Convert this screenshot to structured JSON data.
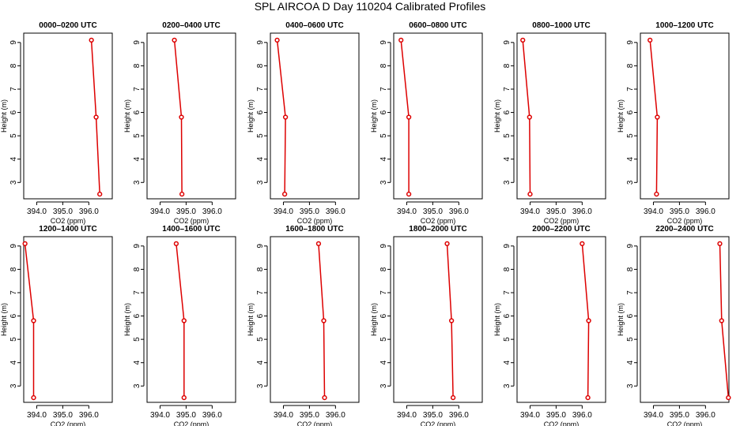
{
  "title": "SPL AIRCOA D  Day 110204  Calibrated Profiles",
  "xlabel": "CO2 (ppm)",
  "ylabel": "Height (m)",
  "colors": {
    "series": "#dd0000",
    "axis": "#000000",
    "background": "#ffffff"
  },
  "chart_data": [
    {
      "type": "line",
      "title": "0000–0200 UTC",
      "x": [
        396.42,
        396.28,
        396.1
      ],
      "y": [
        2.5,
        5.8,
        9.1
      ],
      "xlim": [
        393.5,
        396.9
      ],
      "ylim": [
        2.3,
        9.4
      ],
      "xticks": [
        394.0,
        395.0,
        396.0
      ],
      "xtick_labels": [
        "394.0",
        "395.0",
        "396.0"
      ],
      "yticks": [
        3,
        4,
        5,
        6,
        7,
        8,
        9
      ]
    },
    {
      "type": "line",
      "title": "0200–0400 UTC",
      "x": [
        394.84,
        394.82,
        394.55
      ],
      "y": [
        2.5,
        5.8,
        9.1
      ],
      "xlim": [
        393.5,
        396.9
      ],
      "ylim": [
        2.3,
        9.4
      ],
      "xticks": [
        394.0,
        395.0,
        396.0
      ],
      "xtick_labels": [
        "394.0",
        "395.0",
        "396.0"
      ],
      "yticks": [
        3,
        4,
        5,
        6,
        7,
        8,
        9
      ]
    },
    {
      "type": "line",
      "title": "0400–0600 UTC",
      "x": [
        394.05,
        394.08,
        393.76
      ],
      "y": [
        2.5,
        5.8,
        9.1
      ],
      "xlim": [
        393.5,
        396.9
      ],
      "ylim": [
        2.3,
        9.4
      ],
      "xticks": [
        394.0,
        395.0,
        396.0
      ],
      "xtick_labels": [
        "394.0",
        "395.0",
        "396.0"
      ],
      "yticks": [
        3,
        4,
        5,
        6,
        7,
        8,
        9
      ]
    },
    {
      "type": "line",
      "title": "0600–0800 UTC",
      "x": [
        394.08,
        394.08,
        393.78
      ],
      "y": [
        2.5,
        5.8,
        9.1
      ],
      "xlim": [
        393.5,
        396.9
      ],
      "ylim": [
        2.3,
        9.4
      ],
      "xticks": [
        394.0,
        395.0,
        396.0
      ],
      "xtick_labels": [
        "394.0",
        "395.0",
        "396.0"
      ],
      "yticks": [
        3,
        4,
        5,
        6,
        7,
        8,
        9
      ]
    },
    {
      "type": "line",
      "title": "0800–1000 UTC",
      "x": [
        394.0,
        393.98,
        393.72
      ],
      "y": [
        2.5,
        5.8,
        9.1
      ],
      "xlim": [
        393.5,
        396.9
      ],
      "ylim": [
        2.3,
        9.4
      ],
      "xticks": [
        394.0,
        395.0,
        396.0
      ],
      "xtick_labels": [
        "394.0",
        "395.0",
        "396.0"
      ],
      "yticks": [
        3,
        4,
        5,
        6,
        7,
        8,
        9
      ]
    },
    {
      "type": "line",
      "title": "1000–1200 UTC",
      "x": [
        394.12,
        394.15,
        393.87
      ],
      "y": [
        2.5,
        5.8,
        9.1
      ],
      "xlim": [
        393.5,
        396.9
      ],
      "ylim": [
        2.3,
        9.4
      ],
      "xticks": [
        394.0,
        395.0,
        396.0
      ],
      "xtick_labels": [
        "394.0",
        "395.0",
        "396.0"
      ],
      "yticks": [
        3,
        4,
        5,
        6,
        7,
        8,
        9
      ]
    },
    {
      "type": "line",
      "title": "1200–1400 UTC",
      "x": [
        393.88,
        393.88,
        393.55
      ],
      "y": [
        2.5,
        5.8,
        9.1
      ],
      "xlim": [
        393.5,
        396.9
      ],
      "ylim": [
        2.3,
        9.4
      ],
      "xticks": [
        394.0,
        395.0,
        396.0
      ],
      "xtick_labels": [
        "394.0",
        "395.0",
        "396.0"
      ],
      "yticks": [
        3,
        4,
        5,
        6,
        7,
        8,
        9
      ]
    },
    {
      "type": "line",
      "title": "1400–1600 UTC",
      "x": [
        394.92,
        394.92,
        394.62
      ],
      "y": [
        2.5,
        5.8,
        9.1
      ],
      "xlim": [
        393.5,
        396.9
      ],
      "ylim": [
        2.3,
        9.4
      ],
      "xticks": [
        394.0,
        395.0,
        396.0
      ],
      "xtick_labels": [
        "394.0",
        "395.0",
        "396.0"
      ],
      "yticks": [
        3,
        4,
        5,
        6,
        7,
        8,
        9
      ]
    },
    {
      "type": "line",
      "title": "1600–1800 UTC",
      "x": [
        395.58,
        395.55,
        395.35
      ],
      "y": [
        2.5,
        5.8,
        9.1
      ],
      "xlim": [
        393.5,
        396.9
      ],
      "ylim": [
        2.3,
        9.4
      ],
      "xticks": [
        394.0,
        395.0,
        396.0
      ],
      "xtick_labels": [
        "394.0",
        "395.0",
        "396.0"
      ],
      "yticks": [
        3,
        4,
        5,
        6,
        7,
        8,
        9
      ]
    },
    {
      "type": "line",
      "title": "1800–2000 UTC",
      "x": [
        395.78,
        395.72,
        395.55
      ],
      "y": [
        2.5,
        5.8,
        9.1
      ],
      "xlim": [
        393.5,
        396.9
      ],
      "ylim": [
        2.3,
        9.4
      ],
      "xticks": [
        394.0,
        395.0,
        396.0
      ],
      "xtick_labels": [
        "394.0",
        "395.0",
        "396.0"
      ],
      "yticks": [
        3,
        4,
        5,
        6,
        7,
        8,
        9
      ]
    },
    {
      "type": "line",
      "title": "2000–2200 UTC",
      "x": [
        396.22,
        396.25,
        396.0
      ],
      "y": [
        2.5,
        5.8,
        9.1
      ],
      "xlim": [
        393.5,
        396.9
      ],
      "ylim": [
        2.3,
        9.4
      ],
      "xticks": [
        394.0,
        395.0,
        396.0
      ],
      "xtick_labels": [
        "394.0",
        "395.0",
        "396.0"
      ],
      "yticks": [
        3,
        4,
        5,
        6,
        7,
        8,
        9
      ]
    },
    {
      "type": "line",
      "title": "2200–2400 UTC",
      "x": [
        396.88,
        396.62,
        396.55
      ],
      "y": [
        2.5,
        5.8,
        9.1
      ],
      "xlim": [
        393.5,
        396.9
      ],
      "ylim": [
        2.3,
        9.4
      ],
      "xticks": [
        394.0,
        395.0,
        396.0
      ],
      "xtick_labels": [
        "394.0",
        "395.0",
        "396.0"
      ],
      "yticks": [
        3,
        4,
        5,
        6,
        7,
        8,
        9
      ]
    }
  ]
}
